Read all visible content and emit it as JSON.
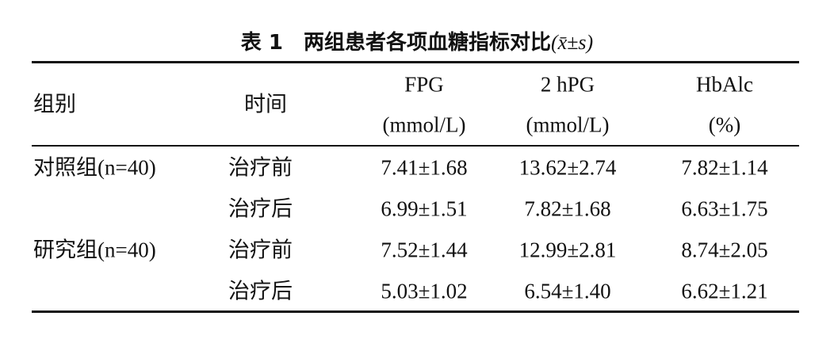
{
  "title": {
    "label": "表 1",
    "text": "两组患者各项血糖指标对比",
    "formula": "(x̄±s)"
  },
  "header": {
    "group": "组别",
    "time": "时间",
    "measures": [
      {
        "name": "FPG",
        "unit": "(mmol/L)"
      },
      {
        "name": "2 hPG",
        "unit": "(mmol/L)"
      },
      {
        "name": "HbAlc",
        "unit": "(%)"
      }
    ]
  },
  "groups": [
    {
      "name": "对照组(n=40)",
      "rows": [
        [
          "治疗前",
          "7.41±1.68",
          "13.62±2.74",
          "7.82±1.14"
        ],
        [
          "治疗后",
          "6.99±1.51",
          "7.82±1.68",
          "6.63±1.75"
        ]
      ]
    },
    {
      "name": "研究组(n=40)",
      "rows": [
        [
          "治疗前",
          "7.52±1.44",
          "12.99±2.81",
          "8.74±2.05"
        ],
        [
          "治疗后",
          "5.03±1.02",
          "6.54±1.40",
          "6.62±1.21"
        ]
      ]
    }
  ]
}
